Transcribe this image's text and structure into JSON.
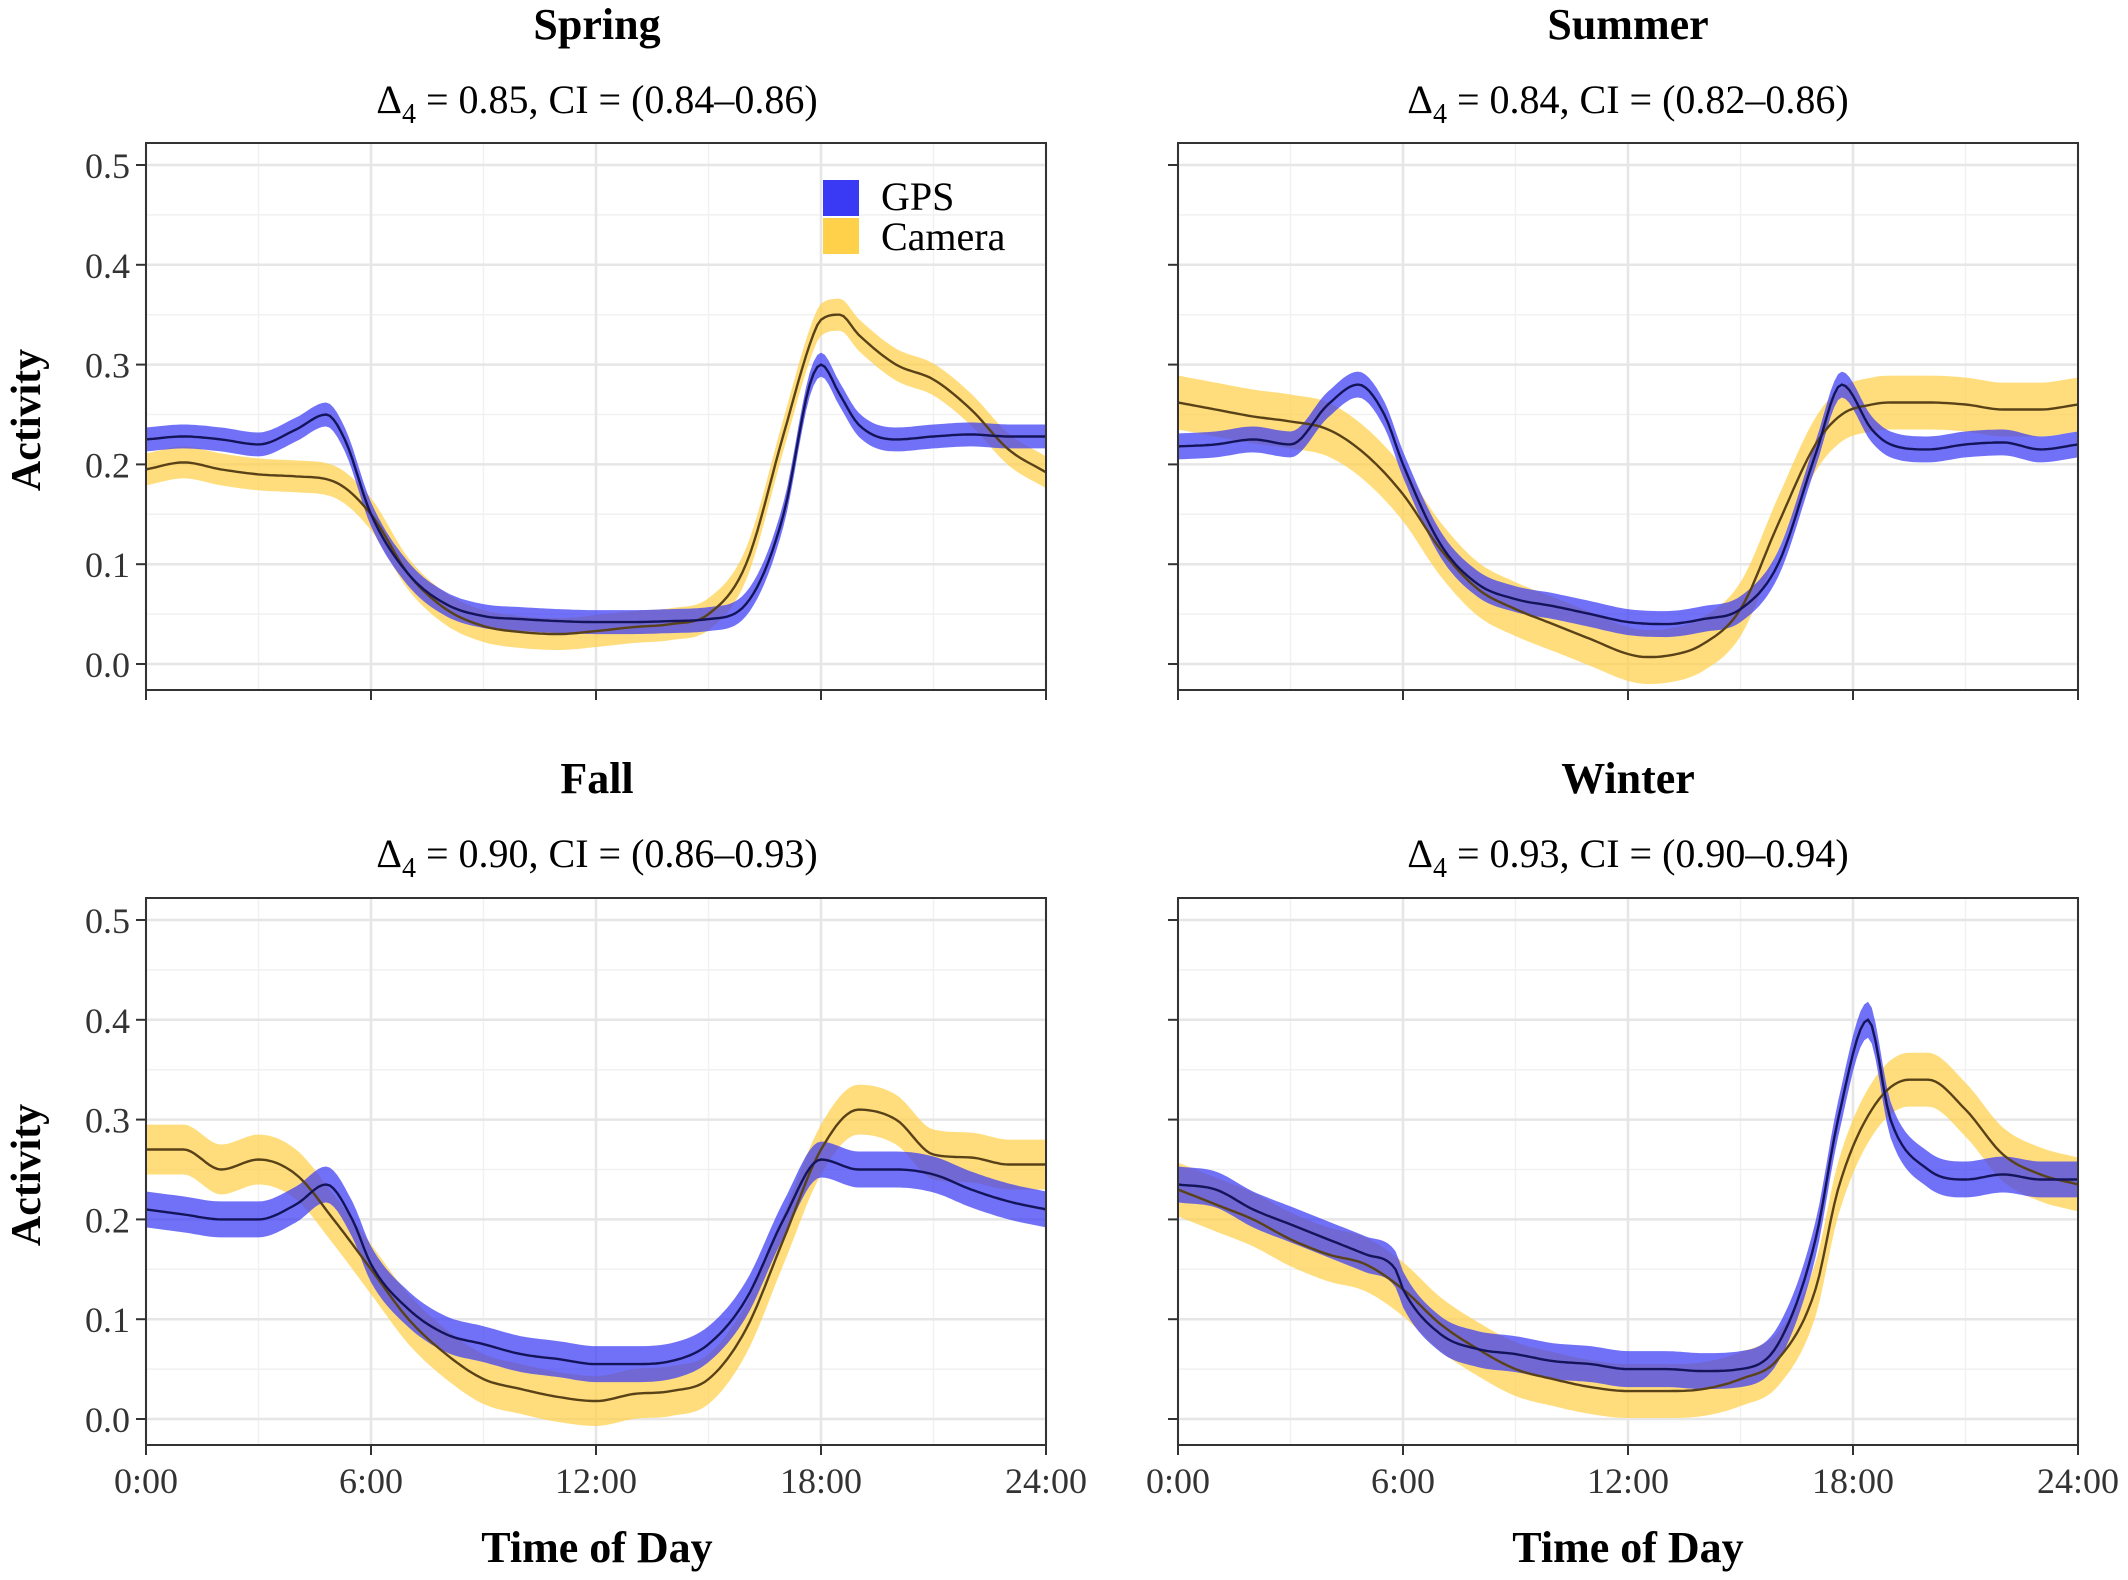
{
  "y_axis_label": "Activity",
  "x_axis_label": "Time of Day",
  "legend": [
    {
      "label": "GPS",
      "color": "#3a3af5"
    },
    {
      "label": "Camera",
      "color": "#ffd04a"
    }
  ],
  "colors": {
    "gps_band": "#3a3af5",
    "camera_band": "#ffd04a",
    "gps_line": "#14145a",
    "camera_line": "#5a4218",
    "grid": "#e6e6e6",
    "frame": "#333333"
  },
  "panels": [
    {
      "title": "Spring",
      "delta_symbol": "Δ",
      "delta_sub": "4",
      "stat": " = 0.85, CI = (0.84–0.86)"
    },
    {
      "title": "Summer",
      "delta_symbol": "Δ",
      "delta_sub": "4",
      "stat": " = 0.84, CI = (0.82–0.86)"
    },
    {
      "title": "Fall",
      "delta_symbol": "Δ",
      "delta_sub": "4",
      "stat": " = 0.90, CI = (0.86–0.93)"
    },
    {
      "title": "Winter",
      "delta_symbol": "Δ",
      "delta_sub": "4",
      "stat": " = 0.93, CI = (0.90–0.94)"
    }
  ],
  "chart_data": [
    {
      "type": "line",
      "title": "Spring",
      "xlabel": "",
      "ylabel": "Activity",
      "xlim": [
        0,
        24
      ],
      "ylim": [
        0,
        0.52
      ],
      "x_ticks": [
        0,
        6,
        12,
        18,
        24
      ],
      "x_tick_labels": [
        "0:00",
        "6:00",
        "12:00",
        "18:00",
        "24:00"
      ],
      "y_ticks": [
        0,
        0.1,
        0.2,
        0.3,
        0.4,
        0.5
      ],
      "y_tick_labels": [
        "0.0",
        "0.1",
        "0.2",
        "0.3",
        "0.4",
        "0.5"
      ],
      "series": [
        {
          "name": "GPS",
          "x": [
            0,
            1,
            2,
            3,
            4,
            4.8,
            5.3,
            6,
            7,
            8,
            9,
            10,
            11,
            12,
            13,
            14,
            15,
            16,
            17,
            17.7,
            18,
            18.5,
            19,
            20,
            21,
            22,
            23,
            24
          ],
          "y": [
            0.225,
            0.228,
            0.225,
            0.22,
            0.235,
            0.25,
            0.225,
            0.15,
            0.09,
            0.06,
            0.048,
            0.045,
            0.043,
            0.042,
            0.042,
            0.043,
            0.045,
            0.06,
            0.15,
            0.28,
            0.3,
            0.27,
            0.24,
            0.225,
            0.228,
            0.23,
            0.228,
            0.228
          ],
          "band": 0.012
        },
        {
          "name": "Camera",
          "x": [
            0,
            1,
            2,
            3,
            4,
            5,
            6,
            7,
            8,
            9,
            10,
            11,
            12,
            13,
            14,
            15,
            16,
            17,
            17.7,
            18,
            18.5,
            19,
            20,
            21,
            22,
            23,
            24
          ],
          "y": [
            0.195,
            0.202,
            0.195,
            0.19,
            0.188,
            0.183,
            0.15,
            0.09,
            0.055,
            0.038,
            0.032,
            0.03,
            0.033,
            0.037,
            0.04,
            0.05,
            0.1,
            0.23,
            0.32,
            0.345,
            0.35,
            0.33,
            0.3,
            0.285,
            0.255,
            0.215,
            0.192
          ],
          "band": 0.016
        }
      ]
    },
    {
      "type": "line",
      "title": "Summer",
      "xlabel": "",
      "ylabel": "",
      "xlim": [
        0,
        24
      ],
      "ylim": [
        0,
        0.52
      ],
      "x_ticks": [
        0,
        6,
        12,
        18,
        24
      ],
      "x_tick_labels": [
        "0:00",
        "6:00",
        "12:00",
        "18:00",
        "24:00"
      ],
      "y_ticks": [
        0,
        0.1,
        0.2,
        0.3,
        0.4,
        0.5
      ],
      "y_tick_labels": [
        "0.0",
        "0.1",
        "0.2",
        "0.3",
        "0.4",
        "0.5"
      ],
      "series": [
        {
          "name": "GPS",
          "x": [
            0,
            1,
            2,
            3,
            4,
            4.8,
            5.5,
            6,
            7,
            8,
            9,
            10,
            11,
            12,
            13,
            14,
            15,
            16,
            17,
            17.7,
            18.5,
            19,
            20,
            21,
            22,
            23,
            24
          ],
          "y": [
            0.218,
            0.22,
            0.225,
            0.22,
            0.26,
            0.28,
            0.25,
            0.2,
            0.12,
            0.08,
            0.065,
            0.058,
            0.05,
            0.042,
            0.04,
            0.045,
            0.055,
            0.1,
            0.21,
            0.28,
            0.235,
            0.22,
            0.215,
            0.22,
            0.222,
            0.215,
            0.22
          ],
          "band": 0.013
        },
        {
          "name": "Camera",
          "x": [
            0,
            1,
            2,
            3,
            4,
            5,
            6,
            7,
            8,
            9,
            10,
            11,
            12,
            12.5,
            13,
            14,
            15,
            16,
            17,
            17.7,
            18.5,
            19,
            20,
            21,
            22,
            23,
            24
          ],
          "y": [
            0.262,
            0.255,
            0.248,
            0.243,
            0.235,
            0.21,
            0.17,
            0.115,
            0.075,
            0.055,
            0.04,
            0.025,
            0.01,
            0.007,
            0.008,
            0.02,
            0.055,
            0.14,
            0.22,
            0.25,
            0.26,
            0.262,
            0.262,
            0.26,
            0.255,
            0.255,
            0.26
          ],
          "band": 0.027
        }
      ]
    },
    {
      "type": "line",
      "title": "Fall",
      "xlabel": "Time of Day",
      "ylabel": "Activity",
      "xlim": [
        0,
        24
      ],
      "ylim": [
        0,
        0.52
      ],
      "x_ticks": [
        0,
        6,
        12,
        18,
        24
      ],
      "x_tick_labels": [
        "0:00",
        "6:00",
        "12:00",
        "18:00",
        "24:00"
      ],
      "y_ticks": [
        0,
        0.1,
        0.2,
        0.3,
        0.4,
        0.5
      ],
      "y_tick_labels": [
        "0.0",
        "0.1",
        "0.2",
        "0.3",
        "0.4",
        "0.5"
      ],
      "series": [
        {
          "name": "GPS",
          "x": [
            0,
            1,
            2,
            3,
            4,
            4.8,
            5.5,
            6,
            7,
            8,
            9,
            10,
            11,
            12,
            13,
            14,
            15,
            16,
            17,
            18,
            19,
            20,
            21,
            22,
            23,
            24
          ],
          "y": [
            0.21,
            0.205,
            0.2,
            0.2,
            0.215,
            0.235,
            0.2,
            0.155,
            0.11,
            0.085,
            0.075,
            0.065,
            0.06,
            0.055,
            0.055,
            0.058,
            0.075,
            0.12,
            0.2,
            0.26,
            0.25,
            0.25,
            0.245,
            0.23,
            0.218,
            0.21
          ],
          "band": 0.018
        },
        {
          "name": "Camera",
          "x": [
            0,
            1,
            2,
            3,
            4,
            5,
            6,
            7,
            8,
            9,
            10,
            11,
            12,
            13,
            14,
            15,
            16,
            17,
            18,
            19,
            20,
            21,
            22,
            23,
            24
          ],
          "y": [
            0.27,
            0.27,
            0.25,
            0.26,
            0.245,
            0.2,
            0.15,
            0.1,
            0.065,
            0.04,
            0.03,
            0.022,
            0.018,
            0.025,
            0.028,
            0.04,
            0.09,
            0.18,
            0.27,
            0.31,
            0.3,
            0.265,
            0.262,
            0.255,
            0.255
          ],
          "band": 0.025
        }
      ]
    },
    {
      "type": "line",
      "title": "Winter",
      "xlabel": "Time of Day",
      "ylabel": "",
      "xlim": [
        0,
        24
      ],
      "ylim": [
        0,
        0.52
      ],
      "x_ticks": [
        0,
        6,
        12,
        18,
        24
      ],
      "x_tick_labels": [
        "0:00",
        "6:00",
        "12:00",
        "18:00",
        "24:00"
      ],
      "y_ticks": [
        0,
        0.1,
        0.2,
        0.3,
        0.4,
        0.5
      ],
      "y_tick_labels": [
        "0.0",
        "0.1",
        "0.2",
        "0.3",
        "0.4",
        "0.5"
      ],
      "series": [
        {
          "name": "GPS",
          "x": [
            0,
            1,
            2,
            3,
            4,
            5,
            5.8,
            6,
            7,
            8,
            9,
            10,
            11,
            12,
            13,
            14,
            15,
            16,
            17,
            17.6,
            18.4,
            19,
            20,
            21,
            22,
            23,
            24
          ],
          "y": [
            0.235,
            0.23,
            0.21,
            0.195,
            0.18,
            0.165,
            0.15,
            0.13,
            0.085,
            0.07,
            0.065,
            0.058,
            0.055,
            0.05,
            0.05,
            0.048,
            0.05,
            0.075,
            0.18,
            0.3,
            0.4,
            0.3,
            0.25,
            0.24,
            0.245,
            0.24,
            0.24
          ],
          "band": 0.018
        },
        {
          "name": "Camera",
          "x": [
            0,
            1,
            2,
            3,
            4,
            5,
            6,
            7,
            8,
            9,
            10,
            11,
            12,
            13,
            14,
            15,
            16,
            17,
            17.6,
            18.5,
            19.5,
            20,
            21,
            22,
            23,
            24
          ],
          "y": [
            0.23,
            0.215,
            0.2,
            0.18,
            0.165,
            0.155,
            0.13,
            0.095,
            0.07,
            0.05,
            0.04,
            0.032,
            0.028,
            0.028,
            0.03,
            0.04,
            0.06,
            0.13,
            0.23,
            0.31,
            0.34,
            0.34,
            0.31,
            0.265,
            0.245,
            0.235
          ],
          "band": 0.027
        }
      ]
    }
  ]
}
